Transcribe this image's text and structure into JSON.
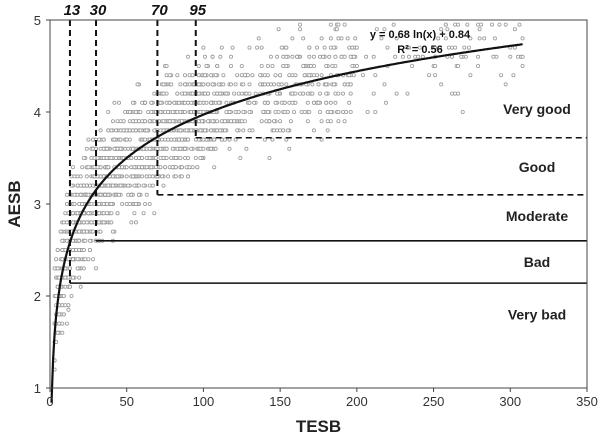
{
  "chart_data": {
    "type": "scatter",
    "xlabel": "TESB",
    "ylabel": "AESB",
    "xlim": [
      0,
      350
    ],
    "ylim": [
      1,
      5
    ],
    "x_ticks": [
      0,
      50,
      100,
      150,
      200,
      250,
      300,
      350
    ],
    "y_ticks": [
      1,
      2,
      3,
      4,
      5
    ],
    "grid": false,
    "legend": "none",
    "point_color": "#9a9a9a",
    "line_color": "#111111",
    "fit": {
      "equation": "y = 0.68 ln(x) + 0.84",
      "r2": "R² = 0.56",
      "a": 0.68,
      "b": 0.84,
      "x_range": [
        1,
        308
      ]
    },
    "cutoffs": [
      {
        "label": "13",
        "x": 13,
        "y_from": 2.14,
        "y_to": 5
      },
      {
        "label": "30",
        "x": 30,
        "y_from": 2.6,
        "y_to": 5
      },
      {
        "label": "70",
        "x": 70,
        "y_from": 3.1,
        "y_to": 5
      },
      {
        "label": "95",
        "x": 95,
        "y_from": 3.72,
        "y_to": 5
      }
    ],
    "thresholds": [
      {
        "y": 3.72,
        "x_from": 95,
        "style": "dashed"
      },
      {
        "y": 3.1,
        "x_from": 70,
        "style": "dashed"
      },
      {
        "y": 2.6,
        "x_from": 30,
        "style": "solid"
      },
      {
        "y": 2.14,
        "x_from": 13,
        "style": "solid"
      }
    ],
    "bands": [
      {
        "label": "Very good",
        "y": 4.03
      },
      {
        "label": "Good",
        "y": 3.4
      },
      {
        "label": "Moderate",
        "y": 2.87
      },
      {
        "label": "Bad",
        "y": 2.37
      },
      {
        "label": "Very bad",
        "y": 1.8
      }
    ],
    "sample_points": [
      [
        3,
        1.2
      ],
      [
        4,
        1.5
      ],
      [
        5,
        1.6
      ],
      [
        6,
        1.8
      ],
      [
        8,
        1.7
      ],
      [
        10,
        1.9
      ],
      [
        12,
        1.85
      ],
      [
        14,
        2.0
      ],
      [
        15,
        2.2
      ],
      [
        18,
        2.3
      ],
      [
        20,
        2.1
      ],
      [
        22,
        2.5
      ],
      [
        25,
        2.4
      ],
      [
        28,
        2.7
      ],
      [
        30,
        2.3
      ],
      [
        35,
        2.8
      ],
      [
        40,
        3.0
      ],
      [
        45,
        3.1
      ],
      [
        50,
        3.3
      ],
      [
        55,
        3.2
      ],
      [
        60,
        3.4
      ],
      [
        65,
        3.5
      ],
      [
        70,
        3.3
      ],
      [
        75,
        3.7
      ],
      [
        80,
        3.6
      ],
      [
        85,
        3.8
      ],
      [
        90,
        3.9
      ],
      [
        95,
        3.7
      ],
      [
        100,
        4.0
      ],
      [
        110,
        4.1
      ],
      [
        120,
        4.2
      ],
      [
        130,
        4.0
      ],
      [
        140,
        4.3
      ],
      [
        150,
        4.4
      ],
      [
        160,
        4.2
      ],
      [
        170,
        4.5
      ],
      [
        180,
        4.3
      ],
      [
        190,
        4.6
      ],
      [
        200,
        4.7
      ],
      [
        220,
        4.5
      ],
      [
        240,
        4.6
      ],
      [
        260,
        4.7
      ],
      [
        280,
        4.8
      ],
      [
        300,
        4.6
      ],
      [
        308,
        4.5
      ]
    ]
  }
}
